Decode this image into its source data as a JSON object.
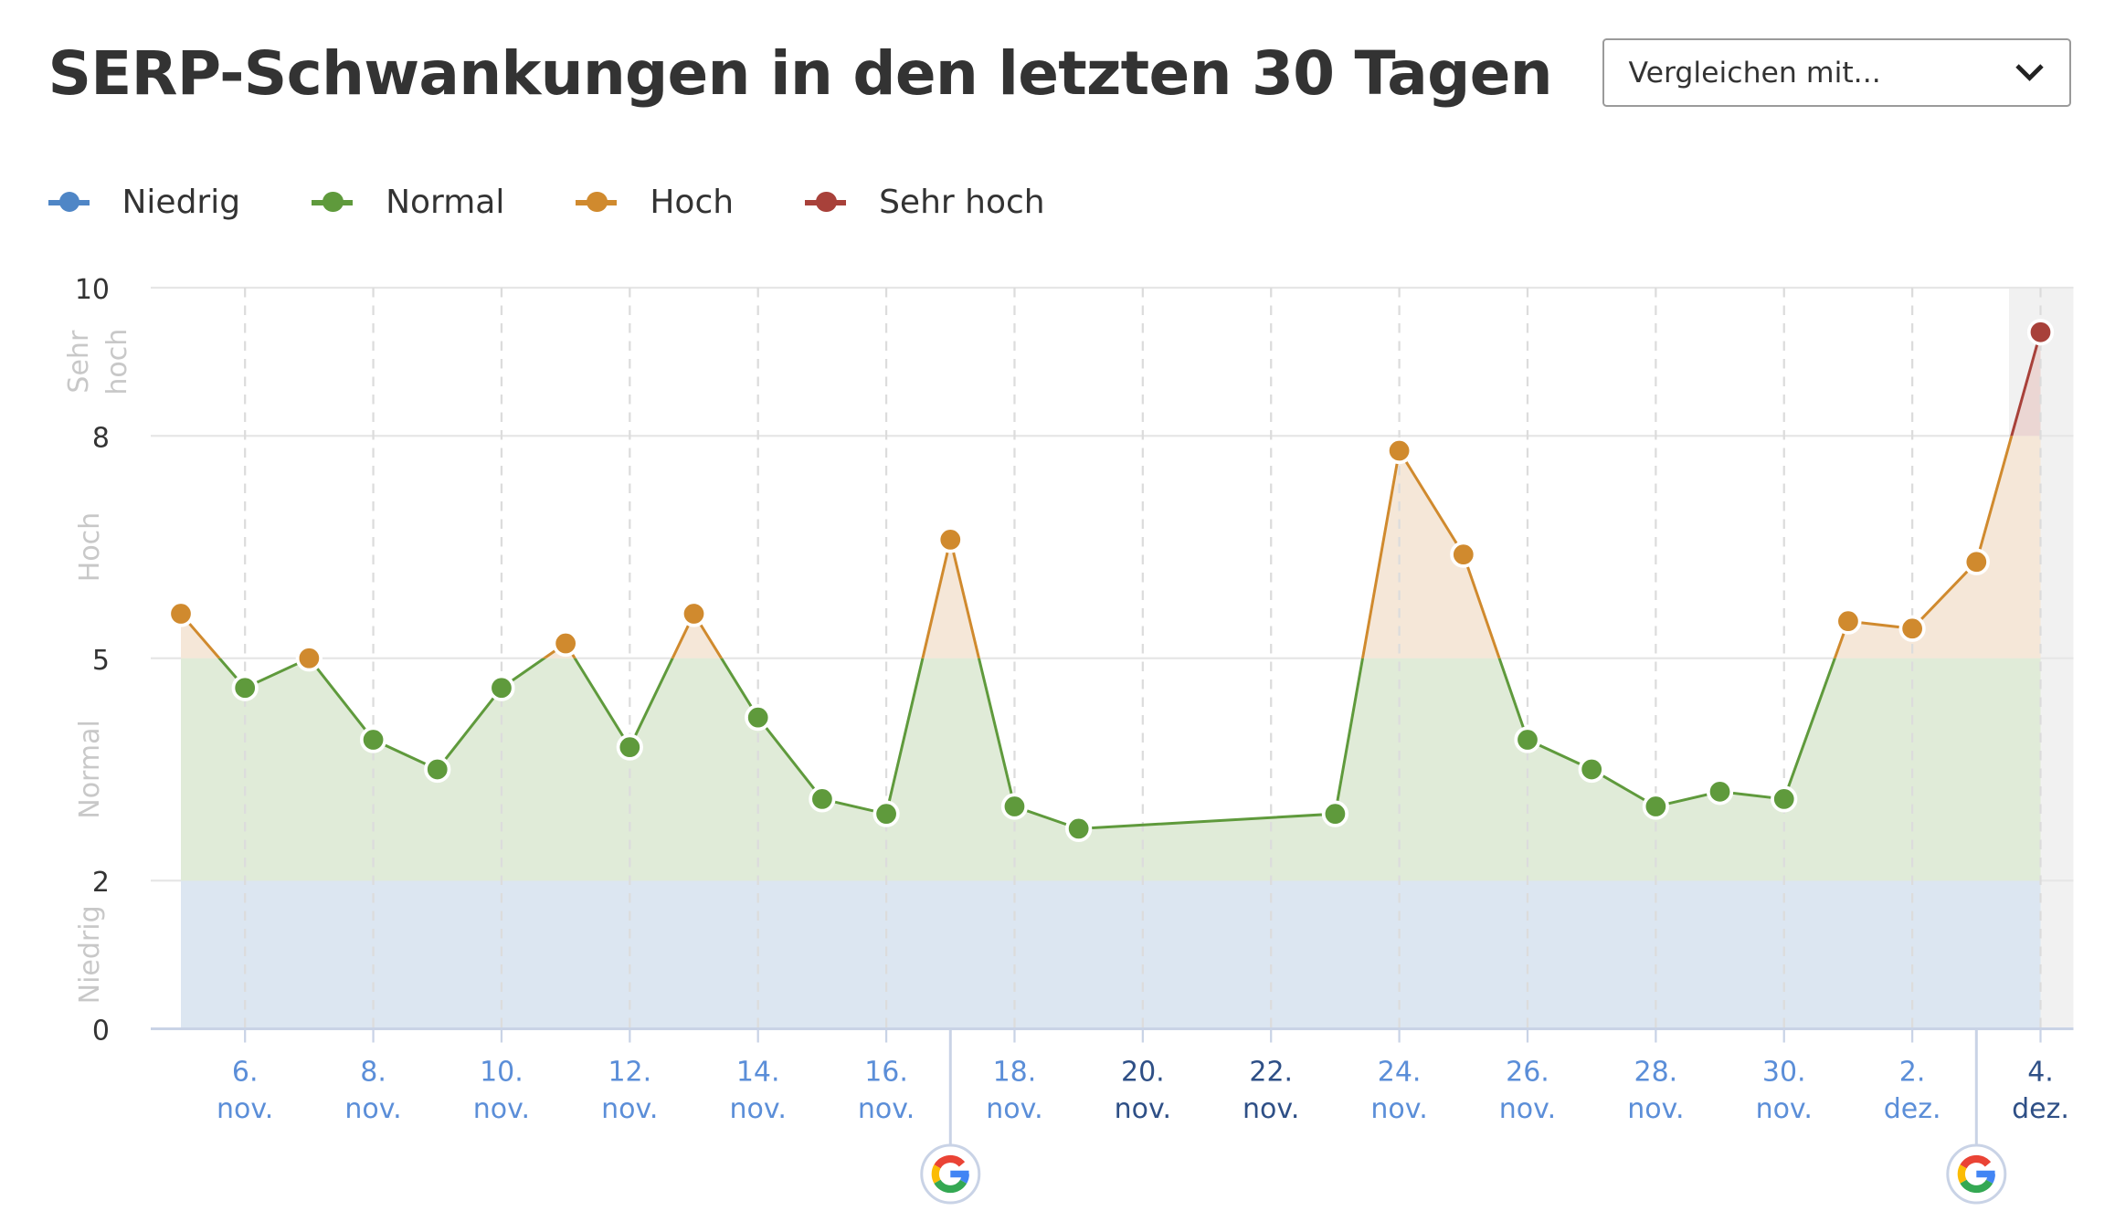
{
  "header": {
    "title": "SERP-Schwankungen in den letzten 30 Tagen"
  },
  "compare_dropdown": {
    "label": "Vergleichen mit...",
    "icon": "chevron-down-icon"
  },
  "legend": [
    {
      "label": "Niedrig",
      "color": "#4f86c6"
    },
    {
      "label": "Normal",
      "color": "#5f9a3c"
    },
    {
      "label": "Hoch",
      "color": "#d08a2e"
    },
    {
      "label": "Sehr hoch",
      "color": "#a8413a"
    }
  ],
  "chart_data": {
    "type": "line",
    "ylim": [
      0,
      10
    ],
    "y_ticks": [
      "0",
      "2",
      "5",
      "8",
      "10"
    ],
    "bands": [
      {
        "label": "Niedrig",
        "from": 0,
        "to": 2,
        "color": "#4f86c6",
        "fill": "#dce6f1"
      },
      {
        "label": "Normal",
        "from": 2,
        "to": 5,
        "color": "#5f9a3c",
        "fill": "#e0ebd8"
      },
      {
        "label": "Hoch",
        "from": 5,
        "to": 8,
        "color": "#d08a2e",
        "fill": "#f5e7d8"
      },
      {
        "label": "Sehr hoch",
        "from": 8,
        "to": 10,
        "color": "#a8413a",
        "fill": "#ebd6d3"
      }
    ],
    "band_labels": [
      [
        "Niedrig"
      ],
      [
        "Normal"
      ],
      [
        "Hoch"
      ],
      [
        "Sehr",
        "hoch"
      ]
    ],
    "x_tick_labels": [
      [
        "6.",
        "nov."
      ],
      [
        "8.",
        "nov."
      ],
      [
        "10.",
        "nov."
      ],
      [
        "12.",
        "nov."
      ],
      [
        "14.",
        "nov."
      ],
      [
        "16.",
        "nov."
      ],
      [
        "18.",
        "nov."
      ],
      [
        "20.",
        "nov."
      ],
      [
        "22.",
        "nov."
      ],
      [
        "24.",
        "nov."
      ],
      [
        "26.",
        "nov."
      ],
      [
        "28.",
        "nov."
      ],
      [
        "30.",
        "nov."
      ],
      [
        "2.",
        "dez."
      ],
      [
        "4.",
        "dez."
      ]
    ],
    "x_tick_dates": [
      "6 nov",
      "8 nov",
      "10 nov",
      "12 nov",
      "14 nov",
      "16 nov",
      "18 nov",
      "20 nov",
      "22 nov",
      "24 nov",
      "26 nov",
      "28 nov",
      "30 nov",
      "2 dez",
      "4 dez"
    ],
    "x_tick_highlighted": [
      "20 nov",
      "22 nov",
      "4 dez"
    ],
    "dates": [
      "5 nov",
      "6 nov",
      "7 nov",
      "8 nov",
      "9 nov",
      "10 nov",
      "11 nov",
      "12 nov",
      "13 nov",
      "14 nov",
      "15 nov",
      "16 nov",
      "17 nov",
      "18 nov",
      "19 nov",
      "20 nov",
      "21 nov",
      "22 nov",
      "23 nov",
      "24 nov",
      "25 nov",
      "26 nov",
      "27 nov",
      "28 nov",
      "29 nov",
      "30 nov",
      "1 dez",
      "2 dez",
      "3 dez",
      "4 dez"
    ],
    "values": [
      5.6,
      4.6,
      5.0,
      3.9,
      3.5,
      4.6,
      5.2,
      3.8,
      5.6,
      4.2,
      3.1,
      2.9,
      6.6,
      3.0,
      2.7,
      null,
      null,
      null,
      2.9,
      7.8,
      6.4,
      3.9,
      3.5,
      3.0,
      3.2,
      3.1,
      5.5,
      5.4,
      6.3,
      9.4
    ],
    "google_updates": [
      "17 nov",
      "3 dez"
    ],
    "highlighted_date": "4 dez",
    "grid": true
  }
}
